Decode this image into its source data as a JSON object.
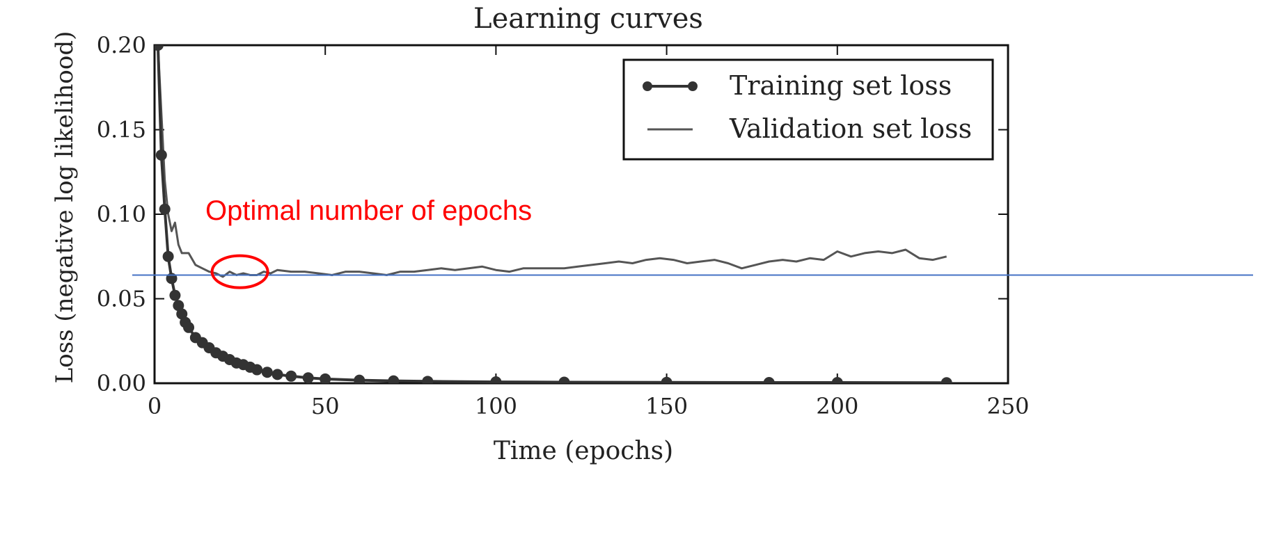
{
  "chart_data": {
    "type": "line",
    "title": "Learning curves",
    "xlabel": "Time (epochs)",
    "ylabel": "Loss (negative log likelihood)",
    "xlim": [
      0,
      250
    ],
    "ylim": [
      0,
      0.2
    ],
    "x_ticks": [
      0,
      50,
      100,
      150,
      200,
      250
    ],
    "y_ticks": [
      0.0,
      0.05,
      0.1,
      0.15,
      0.2
    ],
    "x_tick_labels": [
      "0",
      "50",
      "100",
      "150",
      "200",
      "250"
    ],
    "y_tick_labels": [
      "0.00",
      "0.05",
      "0.10",
      "0.15",
      "0.20"
    ],
    "grid": false,
    "legend_position": "top-right",
    "series": [
      {
        "name": "Training set loss",
        "style": "line-with-markers",
        "color": "#333333",
        "x": [
          1,
          2,
          3,
          4,
          5,
          6,
          7,
          8,
          9,
          10,
          12,
          14,
          16,
          18,
          20,
          22,
          24,
          26,
          28,
          30,
          33,
          36,
          40,
          45,
          50,
          60,
          70,
          80,
          100,
          120,
          150,
          180,
          200,
          232
        ],
        "y": [
          0.2,
          0.135,
          0.103,
          0.075,
          0.062,
          0.052,
          0.046,
          0.041,
          0.036,
          0.033,
          0.027,
          0.024,
          0.021,
          0.018,
          0.016,
          0.014,
          0.012,
          0.011,
          0.0095,
          0.008,
          0.0065,
          0.0052,
          0.0042,
          0.0032,
          0.0025,
          0.0018,
          0.0014,
          0.0011,
          0.0008,
          0.0006,
          0.0005,
          0.0004,
          0.0004,
          0.0003
        ]
      },
      {
        "name": "Validation set loss",
        "style": "line",
        "color": "#555555",
        "x": [
          1,
          2,
          3,
          4,
          5,
          6,
          7,
          8,
          10,
          12,
          14,
          16,
          18,
          20,
          22,
          24,
          26,
          28,
          30,
          32,
          34,
          36,
          40,
          44,
          48,
          52,
          56,
          60,
          64,
          68,
          72,
          76,
          80,
          84,
          88,
          92,
          96,
          100,
          104,
          108,
          112,
          116,
          120,
          124,
          128,
          132,
          136,
          140,
          144,
          148,
          152,
          156,
          160,
          164,
          168,
          172,
          176,
          180,
          184,
          188,
          192,
          196,
          200,
          204,
          208,
          212,
          216,
          220,
          224,
          228,
          232
        ],
        "y": [
          0.2,
          0.16,
          0.12,
          0.1,
          0.09,
          0.095,
          0.082,
          0.077,
          0.077,
          0.07,
          0.068,
          0.066,
          0.065,
          0.063,
          0.066,
          0.064,
          0.065,
          0.064,
          0.064,
          0.066,
          0.065,
          0.067,
          0.066,
          0.066,
          0.065,
          0.064,
          0.066,
          0.066,
          0.065,
          0.064,
          0.066,
          0.066,
          0.067,
          0.068,
          0.067,
          0.068,
          0.069,
          0.067,
          0.066,
          0.068,
          0.068,
          0.068,
          0.068,
          0.069,
          0.07,
          0.071,
          0.072,
          0.071,
          0.073,
          0.074,
          0.073,
          0.071,
          0.072,
          0.073,
          0.071,
          0.068,
          0.07,
          0.072,
          0.073,
          0.072,
          0.074,
          0.073,
          0.078,
          0.075,
          0.077,
          0.078,
          0.077,
          0.079,
          0.074,
          0.073,
          0.075
        ]
      }
    ],
    "reference_line": {
      "y": 0.064,
      "color": "#4472C4"
    },
    "annotation": {
      "text": "Optimal number of epochs",
      "color": "#ff0000",
      "circle_center": [
        25,
        0.066
      ],
      "circle_color": "#ff0000"
    }
  }
}
